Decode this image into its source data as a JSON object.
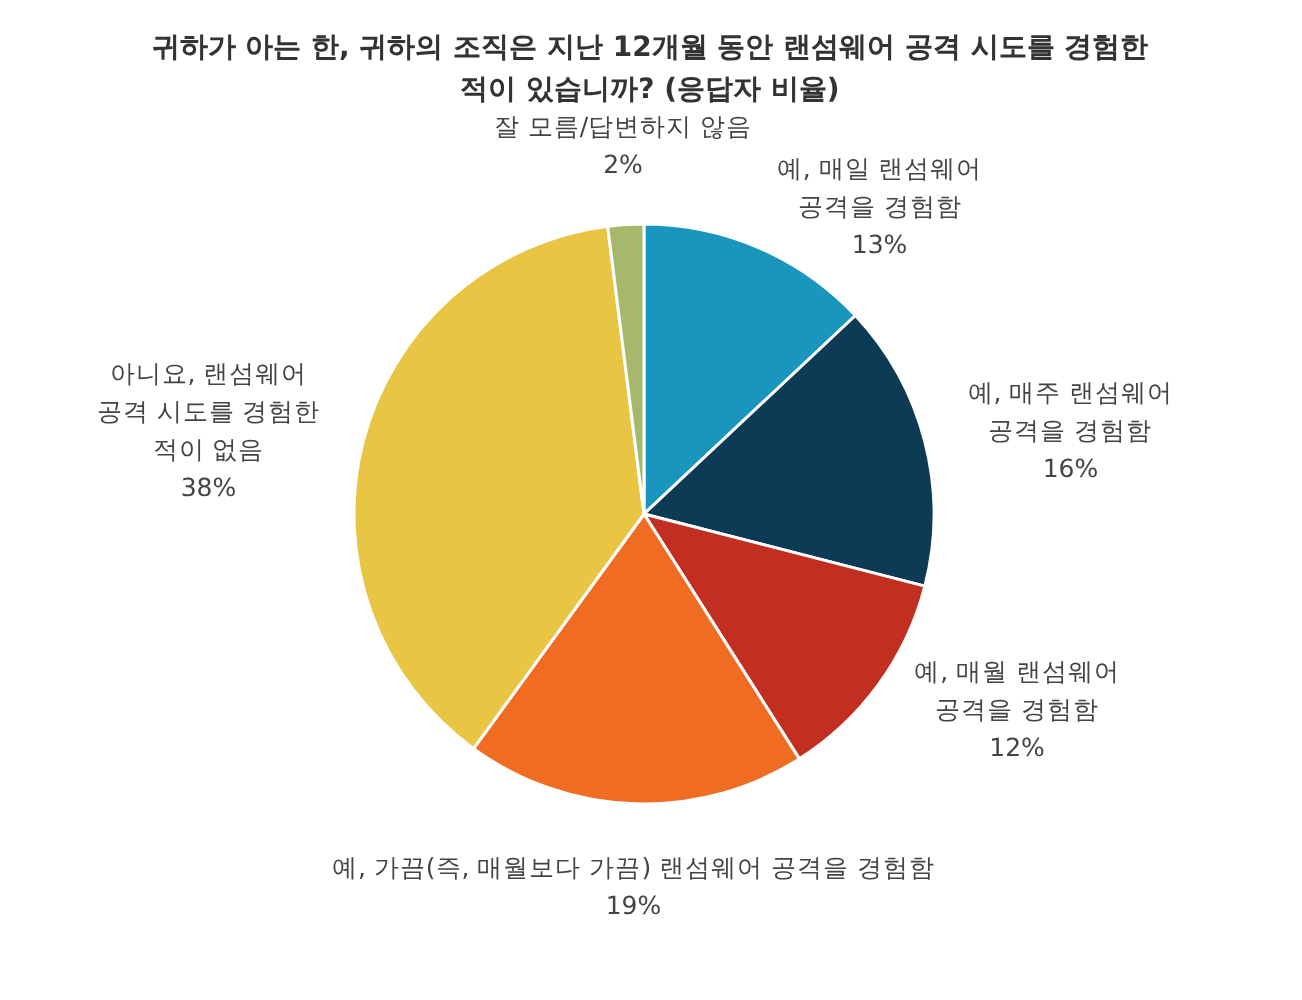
{
  "chart_data": {
    "type": "pie",
    "title": "귀하가 아는 한, 귀하의 조직은 지난 12개월 동안 랜섬웨어 공격 시도를 경험한 적이 있습니까? (응답자 비율)",
    "categories": [
      "예, 매일 랜섬웨어 공격을 경험함",
      "예, 매주 랜섬웨어 공격을 경험함",
      "예, 매월 랜섬웨어 공격을 경험함",
      "예, 가끔(즉, 매월보다 가끔) 랜섬웨어 공격을 경험함",
      "아니요, 랜섬웨어 공격 시도를 경험한 적이 없음",
      "잘 모름/답변하지 않음"
    ],
    "values": [
      13,
      16,
      12,
      19,
      38,
      2
    ],
    "colors": [
      "#1a96be",
      "#0d3b55",
      "#c22e20",
      "#f06c22",
      "#e8c542",
      "#a5b86b"
    ],
    "value_labels": [
      "13%",
      "16%",
      "12%",
      "19%",
      "38%",
      "2%"
    ]
  }
}
